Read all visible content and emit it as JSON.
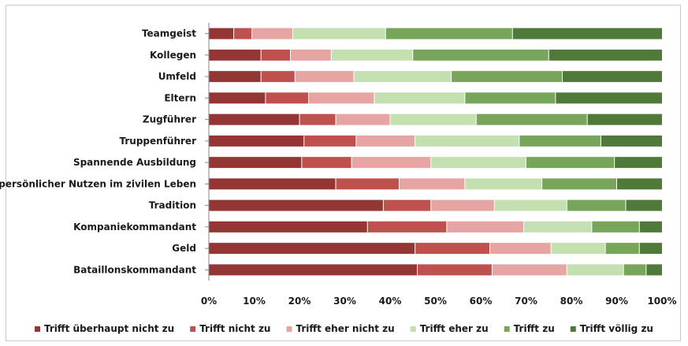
{
  "chart_data": {
    "type": "bar",
    "orientation": "horizontal",
    "stacked": "percent",
    "title": "",
    "xlabel": "",
    "ylabel": "",
    "xlim": [
      0,
      100
    ],
    "x_ticks": [
      "0%",
      "10%",
      "20%",
      "30%",
      "40%",
      "50%",
      "60%",
      "70%",
      "80%",
      "90%",
      "100%"
    ],
    "grid": false,
    "legend_position": "bottom",
    "categories": [
      "Teamgeist",
      "Kollegen",
      "Umfeld",
      "Eltern",
      "Zugführer",
      "Truppenführer",
      "Spannende Ausbildung",
      "persönlicher Nutzen im zivilen Leben",
      "Tradition",
      "Kompaniekommandant",
      "Geld",
      "Bataillonskommandant"
    ],
    "series": [
      {
        "name": "Trifft überhaupt nicht zu",
        "color": "#943634",
        "values": [
          5.5,
          11.5,
          11.5,
          12.5,
          20,
          21,
          20.5,
          28,
          38.5,
          35,
          45.5,
          46
        ]
      },
      {
        "name": "Trifft nicht zu",
        "color": "#c0504d",
        "values": [
          4,
          6.5,
          7.5,
          9.5,
          8,
          11.5,
          11,
          14,
          10.5,
          17.5,
          16.5,
          16.5
        ]
      },
      {
        "name": "Trifft eher nicht zu",
        "color": "#e6a4a3",
        "values": [
          9,
          9,
          13,
          14.5,
          12,
          13,
          17.5,
          14.5,
          14,
          17,
          13.5,
          16.5
        ]
      },
      {
        "name": "Trifft eher zu",
        "color": "#c4dfb0",
        "values": [
          20.5,
          18,
          21.5,
          20,
          19,
          23,
          21,
          17,
          16,
          15,
          12,
          12.5
        ]
      },
      {
        "name": "Trifft zu",
        "color": "#77a55a",
        "values": [
          28,
          30,
          24.5,
          20,
          24.5,
          18,
          19.5,
          16.5,
          13,
          10.5,
          7.5,
          5
        ]
      },
      {
        "name": "Trifft völlig zu",
        "color": "#4f7a3a",
        "values": [
          33,
          25,
          22,
          23.5,
          16.5,
          13.5,
          10.5,
          10,
          8,
          5,
          5,
          3.5
        ]
      }
    ]
  }
}
